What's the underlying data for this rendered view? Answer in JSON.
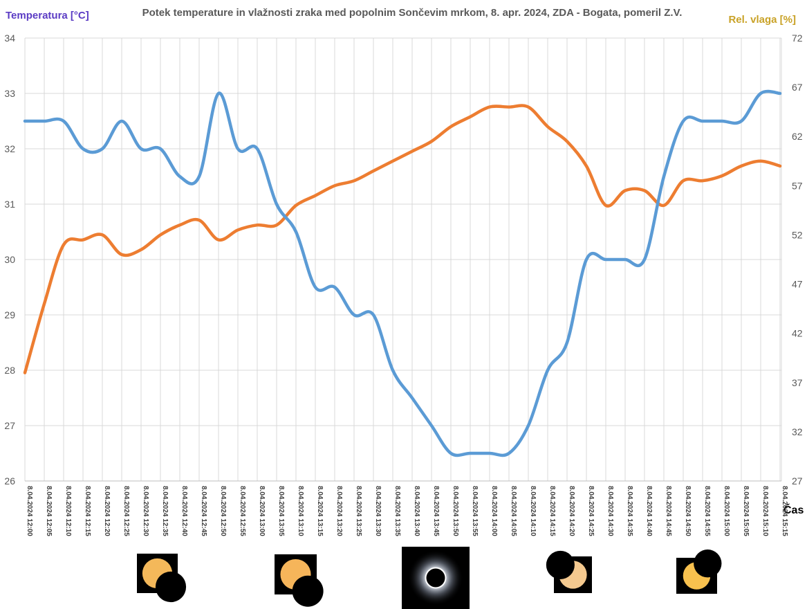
{
  "chart_data": {
    "type": "line",
    "title": "Potek temperature in vlažnosti zraka med popolnim Sončevim mrkom, 8. apr. 2024, ZDA - Bogata, pomeril Z.V.",
    "ylabel_left": "Temperatura [°C]",
    "ylabel_right": "Rel. vlaga [%]",
    "xlabel": "Čas",
    "ylim_left": [
      26,
      34
    ],
    "yticks_left": [
      26,
      27,
      28,
      29,
      30,
      31,
      32,
      33,
      34
    ],
    "ylim_right": [
      27,
      72
    ],
    "yticks_right": [
      27,
      32,
      37,
      42,
      47,
      52,
      57,
      62,
      67,
      72
    ],
    "grid": true,
    "x": [
      "8.04.2024 12:00",
      "8.04.2024 12:05",
      "8.04.2024 12:10",
      "8.04.2024 12:15",
      "8.04.2024 12:20",
      "8.04.2024 12:25",
      "8.04.2024 12:30",
      "8.04.2024 12:35",
      "8.04.2024 12:40",
      "8.04.2024 12:45",
      "8.04.2024 12:50",
      "8.04.2024 12:55",
      "8.04.2024 13:00",
      "8.04.2024 13:05",
      "8.04.2024 13:10",
      "8.04.2024 13:15",
      "8.04.2024 13:20",
      "8.04.2024 13:25",
      "8.04.2024 13:30",
      "8.04.2024 13:35",
      "8.04.2024 13:40",
      "8.04.2024 13:45",
      "8.04.2024 13:50",
      "8.04.2024 13:55",
      "8.04.2024 14:00",
      "8.04.2024 14:05",
      "8.04.2024 14:10",
      "8.04.2024 14:15",
      "8.04.2024 14:20",
      "8.04.2024 14:25",
      "8.04.2024 14:30",
      "8.04.2024 14:35",
      "8.04.2024 14:40",
      "8.04.2024 14:45",
      "8.04.2024 14:50",
      "8.04.2024 14:55",
      "8.04.2024 15:00",
      "8.04.2024 15:05",
      "8.04.2024 15:10",
      "8.04.2024 15:15"
    ],
    "series": [
      {
        "axis": "left",
        "color": "#5b9bd5",
        "values": [
          32.5,
          32.5,
          32.5,
          32.0,
          32.0,
          32.5,
          32.0,
          32.0,
          31.5,
          31.5,
          33.0,
          32.0,
          32.0,
          31.0,
          30.5,
          29.5,
          29.5,
          29.0,
          29.0,
          28.0,
          27.5,
          27.0,
          26.5,
          26.5,
          26.5,
          26.5,
          27.0,
          28.0,
          28.5,
          30.0,
          30.0,
          30.0,
          30.0,
          31.5,
          32.5,
          32.5,
          32.5,
          32.5,
          33.0,
          33.0
        ]
      },
      {
        "axis": "right",
        "color": "#ed7d31",
        "values": [
          38.0,
          45.0,
          51.0,
          51.5,
          52.0,
          50.0,
          50.5,
          52.0,
          53.0,
          53.5,
          51.5,
          52.5,
          53.0,
          53.0,
          55.0,
          56.0,
          57.0,
          57.5,
          58.5,
          59.5,
          60.5,
          61.5,
          63.0,
          64.0,
          65.0,
          65.0,
          65.0,
          63.0,
          61.5,
          59.0,
          55.0,
          56.5,
          56.5,
          55.0,
          57.5,
          57.5,
          58.0,
          59.0,
          59.5,
          59.0
        ]
      }
    ]
  },
  "images": [
    {
      "name": "partial-eclipse-1",
      "type": "partial",
      "bg": "#000000",
      "sun": "#f4b85a",
      "moon_dx": 0.45,
      "moon_dy": 0.45
    },
    {
      "name": "partial-eclipse-2",
      "type": "partial",
      "bg": "#000000",
      "sun": "#f6b55a",
      "moon_dx": 0.4,
      "moon_dy": 0.55
    },
    {
      "name": "totality",
      "type": "total",
      "bg": "#000000"
    },
    {
      "name": "partial-eclipse-3",
      "type": "partial",
      "bg": "#000000",
      "sun": "#f4c98f",
      "moon_dx": -0.45,
      "moon_dy": -0.35
    },
    {
      "name": "partial-eclipse-4",
      "type": "partial",
      "bg": "#000000",
      "sun": "#f8c14e",
      "moon_dx": 0.4,
      "moon_dy": -0.45
    }
  ]
}
